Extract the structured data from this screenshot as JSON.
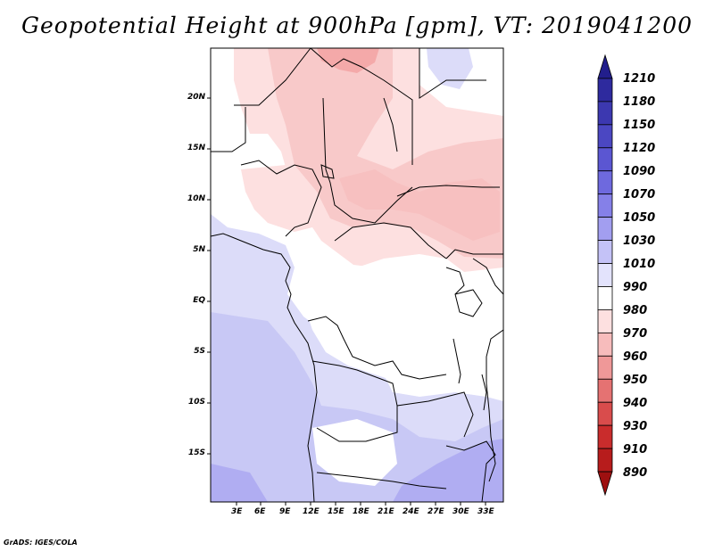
{
  "title": "Geopotential Height at 900hPa [gpm], VT: 2019041200",
  "credit": "GrADS: IGES/COLA",
  "map": {
    "lat_labels": [
      "20N",
      "15N",
      "10N",
      "5N",
      "EQ",
      "5S",
      "10S",
      "15S"
    ],
    "lon_labels": [
      "3E",
      "6E",
      "9E",
      "12E",
      "15E",
      "18E",
      "21E",
      "24E",
      "27E",
      "30E",
      "33E"
    ]
  },
  "colorbar": {
    "levels": [
      "1210",
      "1180",
      "1150",
      "1120",
      "1090",
      "1070",
      "1050",
      "1030",
      "1010",
      "990",
      "980",
      "970",
      "960",
      "950",
      "940",
      "930",
      "910",
      "890"
    ],
    "colors": [
      "#221e8c",
      "#2e2a9e",
      "#3c38b0",
      "#4b47c2",
      "#5b56d2",
      "#6e69de",
      "#8580e8",
      "#a29ef0",
      "#c4c2f7",
      "#e3e3fc",
      "#ffffff",
      "#fde0e0",
      "#f7bcbc",
      "#ef9898",
      "#e57272",
      "#d94c4c",
      "#c92c2c",
      "#b71c1c",
      "#9e1010"
    ]
  }
}
